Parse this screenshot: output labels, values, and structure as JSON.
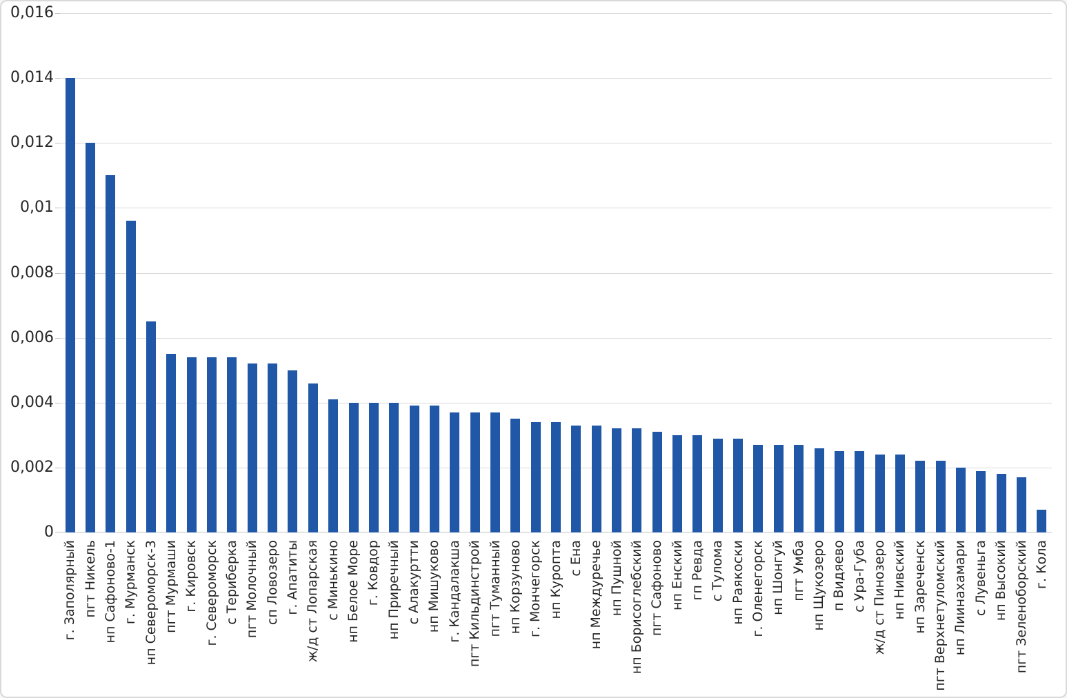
{
  "chart_data": {
    "type": "bar",
    "title": "",
    "xlabel": "",
    "ylabel": "",
    "categories": [
      "г. Заполярный",
      "пгт Никель",
      "нп Сафоново-1",
      "г. Мурманск",
      "нп Североморск-3",
      "пгт Мурмаши",
      "г. Кировск",
      "г. Североморск",
      "с Териберка",
      "пгт Молочный",
      "сп Ловозеро",
      "г. Апатиты",
      "ж/д ст Лопарская",
      "с Минькино",
      "нп Белое Море",
      "г. Ковдор",
      "нп Приречный",
      "с Алакуртти",
      "нп Мишуково",
      "г. Кандалакша",
      "пгт Кильдинстрой",
      "пгт Туманный",
      "нп Корзуново",
      "г. Мончегорск",
      "нп Куропта",
      "с Ена",
      "нп Междуречье",
      "нп Пушной",
      "нп Борисоглебский",
      "пгт Сафоново",
      "нп Енский",
      "гп Ревда",
      "с Тулома",
      "нп Раякоски",
      "г. Оленегорск",
      "нп Шонгуй",
      "пгт Умба",
      "нп Щукозеро",
      "п Видяево",
      "с Ура-Губа",
      "ж/д ст Пинозеро",
      "нп Нивский",
      "нп Зареченск",
      "пгт Верхнетуломский",
      "нп Лиинахамари",
      "с Лувеньга",
      "нп Высокий",
      "пгт Зеленоборский",
      "г. Кола"
    ],
    "values": [
      0.014,
      0.012,
      0.011,
      0.0096,
      0.0065,
      0.0055,
      0.0054,
      0.0054,
      0.0054,
      0.0052,
      0.0052,
      0.005,
      0.0046,
      0.0041,
      0.004,
      0.004,
      0.004,
      0.0039,
      0.0039,
      0.0037,
      0.0037,
      0.0037,
      0.0035,
      0.0034,
      0.0034,
      0.0033,
      0.0033,
      0.0032,
      0.0032,
      0.0031,
      0.003,
      0.003,
      0.0029,
      0.0029,
      0.0027,
      0.0027,
      0.0027,
      0.0026,
      0.0025,
      0.0025,
      0.0024,
      0.0024,
      0.0022,
      0.0022,
      0.002,
      0.0019,
      0.0018,
      0.0017,
      0.0007
    ],
    "ylim": [
      0,
      0.016
    ],
    "ytick_step": 0.002,
    "ytick_labels": [
      "0",
      "0,002",
      "0,004",
      "0,006",
      "0,008",
      "0,01",
      "0,012",
      "0,014",
      "0,016"
    ],
    "grid": true,
    "legend_position": "none",
    "colors": {
      "bar": "#2057a7",
      "gridline": "#d9d9d9",
      "axis_line": "#bfbfbf",
      "label_text": "#262626",
      "background": "#ffffff",
      "border": "#d9d9d9"
    }
  }
}
